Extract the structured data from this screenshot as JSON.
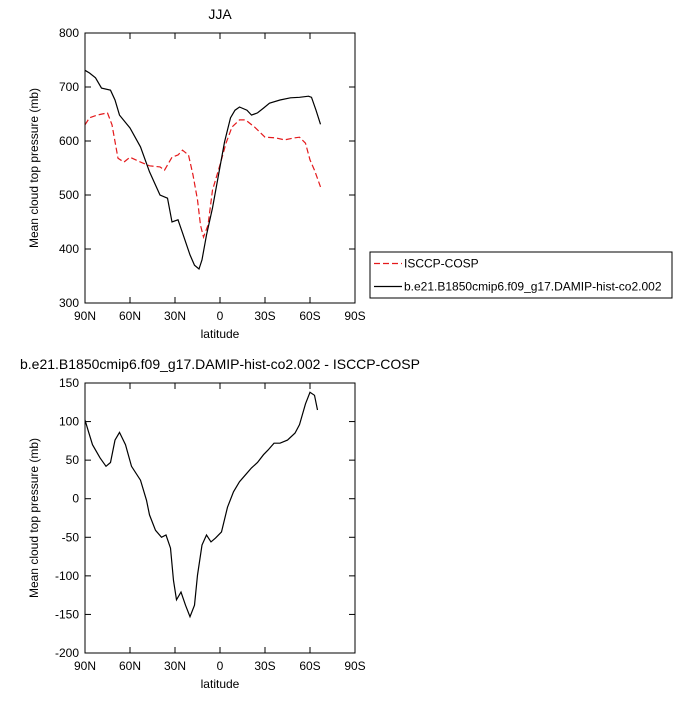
{
  "chart_data": [
    {
      "type": "line",
      "title": "JJA",
      "xlabel": "latitude",
      "ylabel": "Mean cloud top pressure (mb)",
      "xlim": [
        90,
        -90
      ],
      "ylim": [
        300,
        800
      ],
      "xticks": [
        {
          "value": 90,
          "label": "90N"
        },
        {
          "value": 60,
          "label": "60N"
        },
        {
          "value": 30,
          "label": "30N"
        },
        {
          "value": 0,
          "label": "0"
        },
        {
          "value": -30,
          "label": "30S"
        },
        {
          "value": -60,
          "label": "60S"
        },
        {
          "value": -90,
          "label": "90S"
        }
      ],
      "yticks": [
        300,
        400,
        500,
        600,
        700,
        800
      ],
      "legend": "outside-right",
      "series": [
        {
          "name": "ISCCP-COSP",
          "color": "#e41a1c",
          "dashed": true,
          "x": [
            90,
            87,
            82,
            75,
            72,
            68,
            64,
            60,
            53,
            47,
            40,
            37,
            32,
            28,
            25,
            21,
            18,
            15,
            13,
            11,
            8,
            5,
            0,
            -4,
            -8,
            -13,
            -17,
            -23,
            -30,
            -37,
            -43,
            -50,
            -53,
            -57,
            -60,
            -63,
            -67
          ],
          "values": [
            630,
            643,
            648,
            652,
            630,
            568,
            561,
            570,
            561,
            554,
            552,
            546,
            570,
            574,
            583,
            574,
            537,
            491,
            444,
            422,
            444,
            509,
            556,
            596,
            626,
            639,
            639,
            626,
            607,
            606,
            602,
            606,
            607,
            596,
            565,
            546,
            515
          ]
        },
        {
          "name": "b.e21.B1850cmip6.f09_g17.DAMIP-hist-co2.002",
          "color": "#000000",
          "dashed": false,
          "x": [
            90,
            87,
            83,
            79,
            73,
            70,
            67,
            60,
            53,
            47,
            40,
            35,
            32,
            28,
            25,
            20,
            17,
            14,
            12,
            9,
            5,
            1,
            -3,
            -7,
            -10,
            -13,
            -18,
            -21,
            -25,
            -29,
            -33,
            -40,
            -47,
            -53,
            -59,
            -61,
            -64,
            -67
          ],
          "values": [
            731,
            726,
            717,
            698,
            694,
            676,
            648,
            624,
            589,
            543,
            500,
            494,
            450,
            454,
            430,
            389,
            370,
            363,
            380,
            426,
            476,
            537,
            598,
            643,
            657,
            663,
            657,
            648,
            652,
            661,
            670,
            676,
            680,
            681,
            683,
            681,
            657,
            631
          ]
        }
      ]
    },
    {
      "type": "line",
      "title": "b.e21.B1850cmip6.f09_g17.DAMIP-hist-co2.002 - ISCCP-COSP",
      "xlabel": "latitude",
      "ylabel": "Mean cloud top pressure (mb)",
      "xlim": [
        90,
        -90
      ],
      "ylim": [
        -200,
        150
      ],
      "xticks": [
        {
          "value": 90,
          "label": "90N"
        },
        {
          "value": 60,
          "label": "60N"
        },
        {
          "value": 30,
          "label": "30N"
        },
        {
          "value": 0,
          "label": "0"
        },
        {
          "value": -30,
          "label": "30S"
        },
        {
          "value": -60,
          "label": "60S"
        },
        {
          "value": -90,
          "label": "90S"
        }
      ],
      "yticks": [
        -200,
        -150,
        -100,
        -50,
        0,
        50,
        100,
        150
      ],
      "series": [
        {
          "color": "#000000",
          "dashed": false,
          "x": [
            90,
            88,
            85,
            80,
            76,
            73,
            70,
            67,
            63,
            59,
            53,
            49,
            47,
            43,
            39,
            36,
            33,
            31,
            29,
            26,
            23,
            20,
            17,
            15,
            12,
            9,
            6,
            3,
            -1,
            -5,
            -9,
            -13,
            -17,
            -21,
            -25,
            -29,
            -32,
            -36,
            -40,
            -45,
            -50,
            -53,
            -57,
            -60,
            -63,
            -65
          ],
          "values": [
            102,
            89,
            70,
            53,
            42,
            47,
            76,
            86,
            70,
            42,
            24,
            -2,
            -21,
            -41,
            -50,
            -47,
            -64,
            -106,
            -131,
            -121,
            -138,
            -153,
            -138,
            -99,
            -60,
            -47,
            -56,
            -51,
            -43,
            -11,
            9,
            22,
            31,
            40,
            47,
            57,
            63,
            72,
            72,
            76,
            85,
            96,
            123,
            138,
            134,
            115
          ]
        }
      ]
    }
  ]
}
